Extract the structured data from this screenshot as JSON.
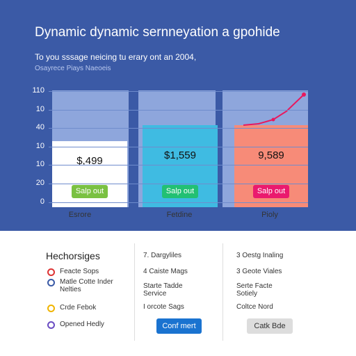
{
  "header": {
    "title": "Dynamic dynamic sernneyation a gpohide",
    "subtitle": "To you sssage neicing tu erary ont an 2004,",
    "caption": "Osayrece Piays Naeoeis"
  },
  "axis_labels": [
    "110",
    "10",
    "40",
    "10",
    "10",
    "20",
    "0"
  ],
  "plans": [
    {
      "price": "$,499",
      "button": "Salp out",
      "name": "Esrore"
    },
    {
      "price": "$1,559",
      "button": "Salp out",
      "name": "Fetdine"
    },
    {
      "price": "9,589",
      "button": "Salp out",
      "name": "Pioly"
    }
  ],
  "features": {
    "title": "Hechorsiges",
    "left": [
      "Feacte Sops",
      "Matle Cotte Inder Nelties",
      "Crde Febok",
      "Opened Hedly"
    ],
    "middle": [
      "7. Dargyliles",
      "4 Caiste Mags",
      "Starte Tadde Service",
      "I orcote Sags"
    ],
    "middle_button": "Conf mert",
    "right": [
      "3 Oestg Inaling",
      "3 Geote Viales",
      "Serte Facte Sotiely",
      "Coltce Nord"
    ],
    "right_button": "Catk Bde"
  }
}
